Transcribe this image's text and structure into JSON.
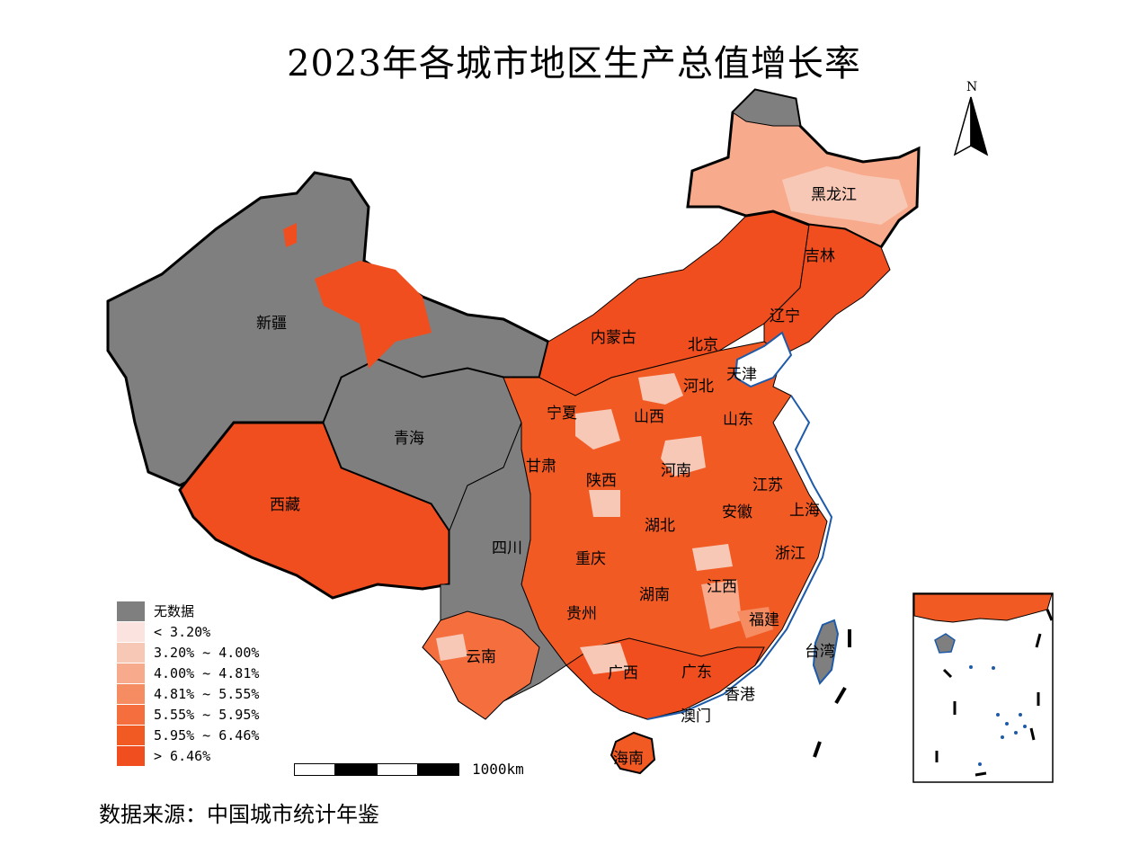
{
  "title": "2023年各城市地区生产总值增长率",
  "source_text": "数据来源：中国城市统计年鉴",
  "north_letter": "N",
  "scale_label": "1000km",
  "colors": {
    "no_data": "#7f7f7f",
    "class_1": "#fbe4e0",
    "class_2": "#f8c8b6",
    "class_3": "#f7ab8c",
    "class_4": "#f58c62",
    "class_5": "#f46e3e",
    "class_6": "#f25a24",
    "class_7": "#f04e1e",
    "water_blue": "#1e5aa8"
  },
  "legend": [
    {
      "label": "无数据",
      "color": "#7f7f7f"
    },
    {
      "label": "< 3.20%",
      "color": "#fbe4e0"
    },
    {
      "label": "3.20% ~ 4.00%",
      "color": "#f8c8b6"
    },
    {
      "label": "4.00% ~ 4.81%",
      "color": "#f7ab8c"
    },
    {
      "label": "4.81% ~ 5.55%",
      "color": "#f58c62"
    },
    {
      "label": "5.55% ~ 5.95%",
      "color": "#f46e3e"
    },
    {
      "label": "5.95% ~ 6.46%",
      "color": "#f25a24"
    },
    {
      "label": "> 6.46%",
      "color": "#f04e1e"
    }
  ],
  "provinces": [
    "黑龙江",
    "吉林",
    "辽宁",
    "内蒙古",
    "北京",
    "天津",
    "河北",
    "新疆",
    "宁夏",
    "山西",
    "山东",
    "青海",
    "甘肃",
    "河南",
    "陕西",
    "江苏",
    "西藏",
    "安徽",
    "上海",
    "湖北",
    "四川",
    "重庆",
    "浙江",
    "湖南",
    "江西",
    "贵州",
    "福建",
    "云南",
    "台湾",
    "广西",
    "广东",
    "香港",
    "澳门",
    "海南"
  ]
}
